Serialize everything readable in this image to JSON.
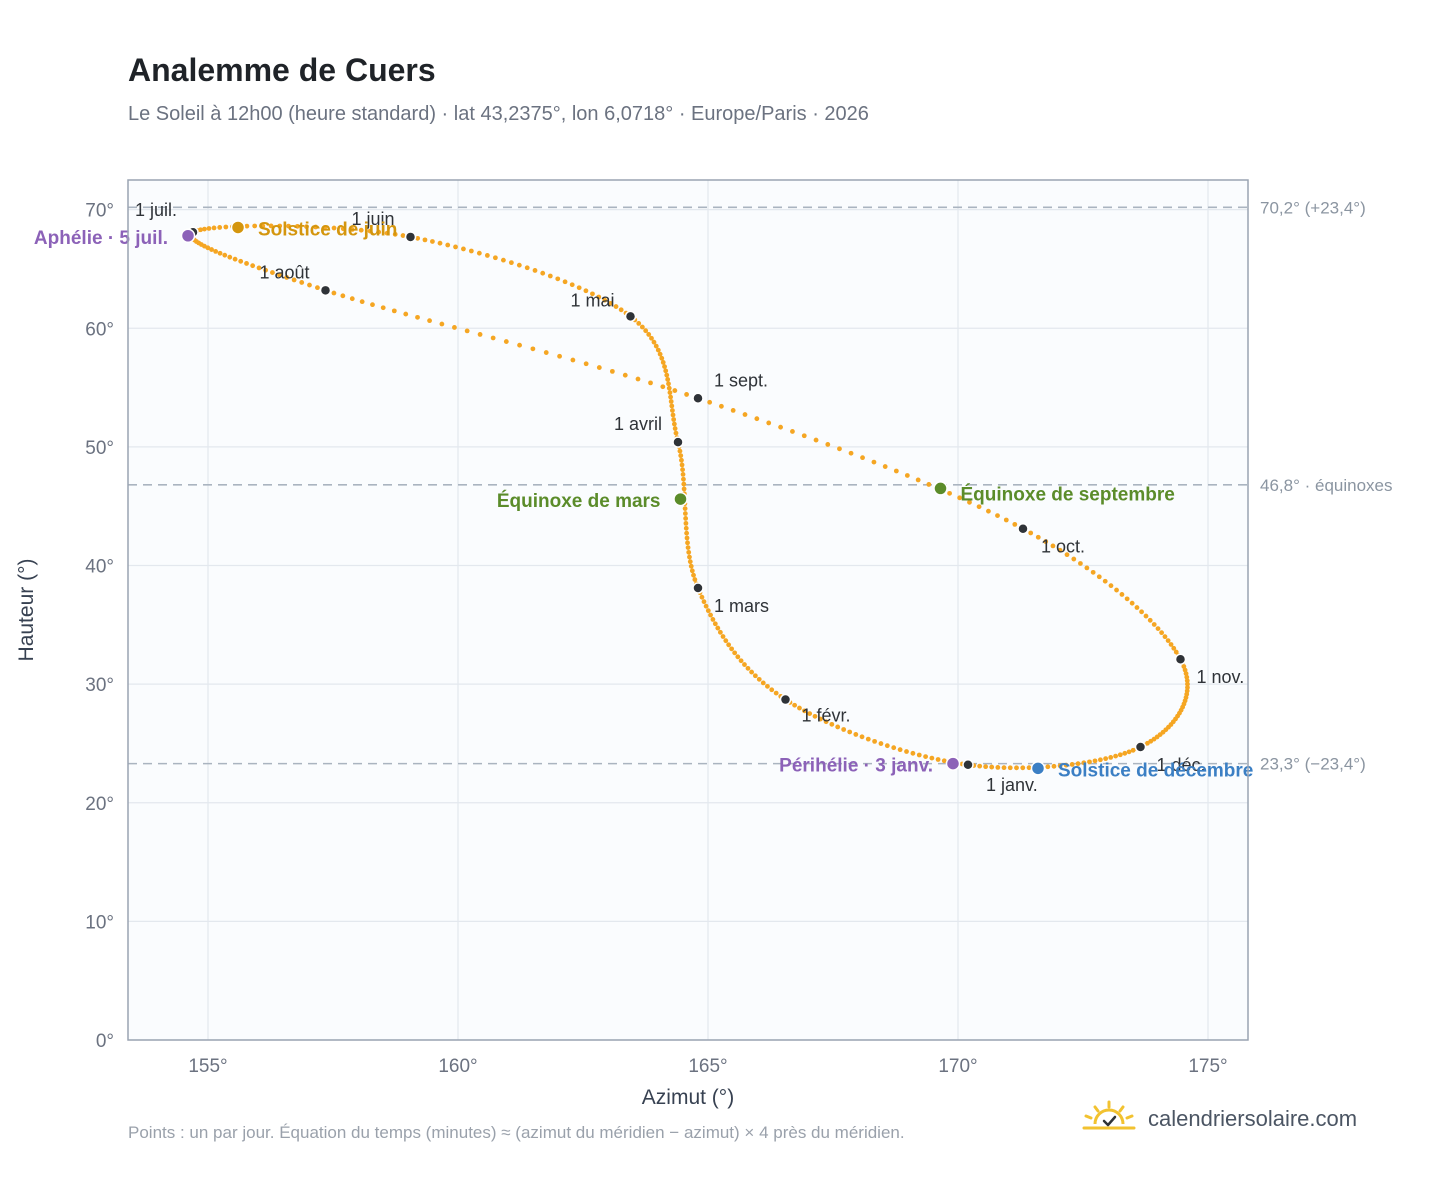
{
  "header": {
    "title": "Analemme de Cuers",
    "subtitle": "Le Soleil à 12h00 (heure standard) · lat 43,2375°, lon 6,0718° · Europe/Paris · 2026"
  },
  "footer": {
    "note": "Points : un par jour. Équation du temps (minutes) ≈ (azimut du méridien − azimut) × 4 près du méridien.",
    "brand": "calendriersolaire.com",
    "brand_icon": "sun-icon"
  },
  "colors": {
    "curve": "#f5a623",
    "month_marker": "#2f3338",
    "solstice_june": "#d4960e",
    "solstice_december": "#3b7fc4",
    "equinox": "#5b8c2a",
    "apsis": "#8c62b8",
    "reference_line": "#aab4c0",
    "plot_background": "#fafcfe",
    "grid": "#e3e8ee",
    "frame": "#9aa4b2"
  },
  "chart_data": {
    "type": "scatter",
    "xlabel": "Azimut (°)",
    "ylabel": "Hauteur (°)",
    "xlim": [
      153.4,
      175.8
    ],
    "ylim": [
      0,
      72.5
    ],
    "xticks": [
      155,
      160,
      165,
      170,
      175
    ],
    "yticks": [
      0,
      10,
      20,
      30,
      40,
      50,
      60,
      70
    ],
    "xtick_labels": [
      "155°",
      "160°",
      "165°",
      "170°",
      "175°"
    ],
    "ytick_labels": [
      "0°",
      "10°",
      "20°",
      "30°",
      "40°",
      "50°",
      "60°",
      "70°"
    ],
    "grid": true,
    "analemma_points_per_day": 1,
    "year": 2026,
    "month_markers": [
      {
        "label": "1 janv.",
        "x": 170.2,
        "y": 23.2
      },
      {
        "label": "1 févr.",
        "x": 166.55,
        "y": 28.7
      },
      {
        "label": "1 mars",
        "x": 164.8,
        "y": 38.1
      },
      {
        "label": "1 avril",
        "x": 164.4,
        "y": 50.4
      },
      {
        "label": "1 mai",
        "x": 163.45,
        "y": 61.0
      },
      {
        "label": "1 juin",
        "x": 159.05,
        "y": 67.7
      },
      {
        "label": "1 juil.",
        "x": 154.7,
        "y": 68.1
      },
      {
        "label": "1 août",
        "x": 157.35,
        "y": 63.2
      },
      {
        "label": "1 sept.",
        "x": 164.8,
        "y": 54.1
      },
      {
        "label": "1 oct.",
        "x": 171.3,
        "y": 43.1
      },
      {
        "label": "1 nov.",
        "x": 174.45,
        "y": 32.1
      },
      {
        "label": "1 déc.",
        "x": 173.65,
        "y": 24.7
      }
    ],
    "events": [
      {
        "label": "Solstice de juin",
        "x": 155.6,
        "y": 68.5,
        "color": "#d4960e"
      },
      {
        "label": "Aphélie · 5 juil.",
        "x": 154.6,
        "y": 67.8,
        "color": "#8c62b8"
      },
      {
        "label": "Équinoxe de mars",
        "x": 164.45,
        "y": 45.6,
        "color": "#5b8c2a"
      },
      {
        "label": "Équinoxe de septembre",
        "x": 169.65,
        "y": 46.5,
        "color": "#5b8c2a"
      },
      {
        "label": "Périhélie · 3 janv.",
        "x": 169.9,
        "y": 23.3,
        "color": "#8c62b8"
      },
      {
        "label": "Solstice de décembre",
        "x": 171.6,
        "y": 22.9,
        "color": "#3b7fc4"
      }
    ],
    "reference_lines": [
      {
        "y": 70.2,
        "label": "70,2° (+23,4°)"
      },
      {
        "y": 46.8,
        "label": "46,8° · équinoxes"
      },
      {
        "y": 23.3,
        "label": "23,3° (−23,4°)"
      }
    ]
  }
}
